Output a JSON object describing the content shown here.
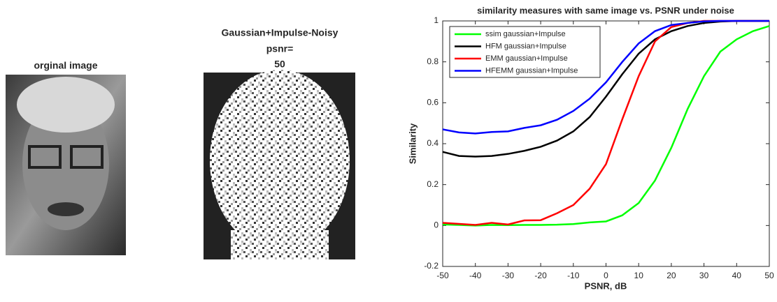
{
  "original_image": {
    "title": "orginal image"
  },
  "noisy_image": {
    "title_lines": [
      "Gaussian+Impulse-Noisy",
      "psnr="
    ],
    "psnr": 50
  },
  "chart_data": {
    "type": "line",
    "title": "similarity measures with same image vs. PSNR under noise",
    "xlabel": "PSNR, dB",
    "ylabel": "Similarity",
    "x": [
      -50,
      -45,
      -40,
      -35,
      -30,
      -25,
      -20,
      -15,
      -10,
      -5,
      0,
      5,
      10,
      15,
      20,
      25,
      30,
      35,
      40,
      45,
      50
    ],
    "series": [
      {
        "name": "ssim gaussian+Impulse",
        "color": "#00ff00",
        "values": [
          0.005,
          0.003,
          0.0,
          0.003,
          0.002,
          0.003,
          0.003,
          0.004,
          0.007,
          0.015,
          0.02,
          0.05,
          0.11,
          0.22,
          0.38,
          0.57,
          0.73,
          0.85,
          0.91,
          0.95,
          0.975
        ]
      },
      {
        "name": "HFM gaussian+Impulse",
        "color": "#000000",
        "values": [
          0.36,
          0.34,
          0.337,
          0.34,
          0.35,
          0.365,
          0.385,
          0.415,
          0.46,
          0.53,
          0.63,
          0.74,
          0.84,
          0.91,
          0.95,
          0.975,
          0.99,
          0.997,
          1,
          1,
          1
        ]
      },
      {
        "name": "EMM gaussian+Impulse",
        "color": "#ff0000",
        "values": [
          0.013,
          0.008,
          0.003,
          0.013,
          0.005,
          0.025,
          0.026,
          0.06,
          0.1,
          0.18,
          0.3,
          0.52,
          0.73,
          0.9,
          0.97,
          0.99,
          1,
          1,
          1,
          1,
          1
        ]
      },
      {
        "name": "HFEMM gaussian+Impulse",
        "color": "#0000ff",
        "values": [
          0.47,
          0.455,
          0.45,
          0.457,
          0.46,
          0.477,
          0.49,
          0.517,
          0.56,
          0.62,
          0.7,
          0.8,
          0.89,
          0.95,
          0.98,
          0.99,
          0.998,
          1,
          1,
          1,
          1
        ]
      }
    ],
    "xlim": [
      -50,
      50
    ],
    "xticks": [
      -50,
      -40,
      -30,
      -20,
      -10,
      0,
      10,
      20,
      30,
      40,
      50
    ],
    "ylim": [
      -0.2,
      1
    ],
    "yticks": [
      -0.2,
      0,
      0.2,
      0.4,
      0.6,
      0.8,
      1
    ],
    "legend": "upper left",
    "grid": false
  }
}
